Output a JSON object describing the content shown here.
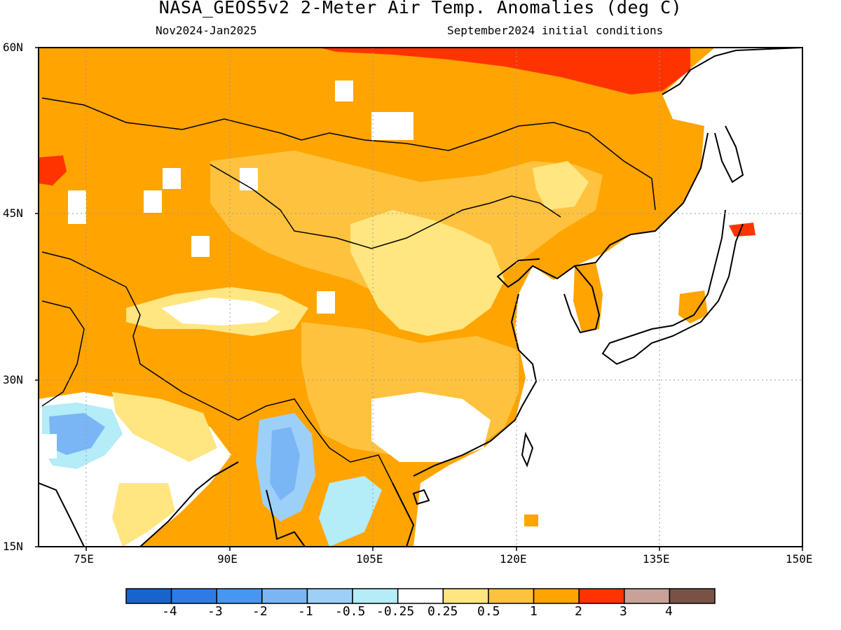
{
  "header": {
    "title": "NASA_GEOS5v2 2-Meter Air Temp. Anomalies (deg C)",
    "valid_period": "Nov2024-Jan2025",
    "init": "September2024 initial conditions"
  },
  "axes": {
    "lat_labels": [
      "60N",
      "45N",
      "30N",
      "15N"
    ],
    "lon_labels": [
      "75E",
      "90E",
      "105E",
      "120E",
      "135E",
      "150E"
    ]
  },
  "colorbar": {
    "labels": [
      "-4",
      "-3",
      "-2",
      "-1",
      "-0.5",
      "-0.25",
      "0.25",
      "0.5",
      "1",
      "2",
      "3",
      "4"
    ],
    "colors": [
      "#1764cc",
      "#2e7be6",
      "#4796f0",
      "#7ab6f5",
      "#9dd0f8",
      "#b4ecf8",
      "#ffffff",
      "#ffe680",
      "#ffc23e",
      "#ffa400",
      "#ff3300",
      "#c8a298",
      "#7a5245"
    ]
  },
  "map_data": {
    "domain": {
      "lon": [
        70,
        150
      ],
      "lat": [
        15,
        60
      ]
    },
    "fill_colors": {
      "warm1": "#ffe680",
      "warm2": "#ffc23e",
      "warm3": "#ffa400",
      "hot": "#ff3300",
      "cool1": "#b4ecf8",
      "cool2": "#9dd0f8",
      "cool3": "#7ab6f5"
    }
  }
}
